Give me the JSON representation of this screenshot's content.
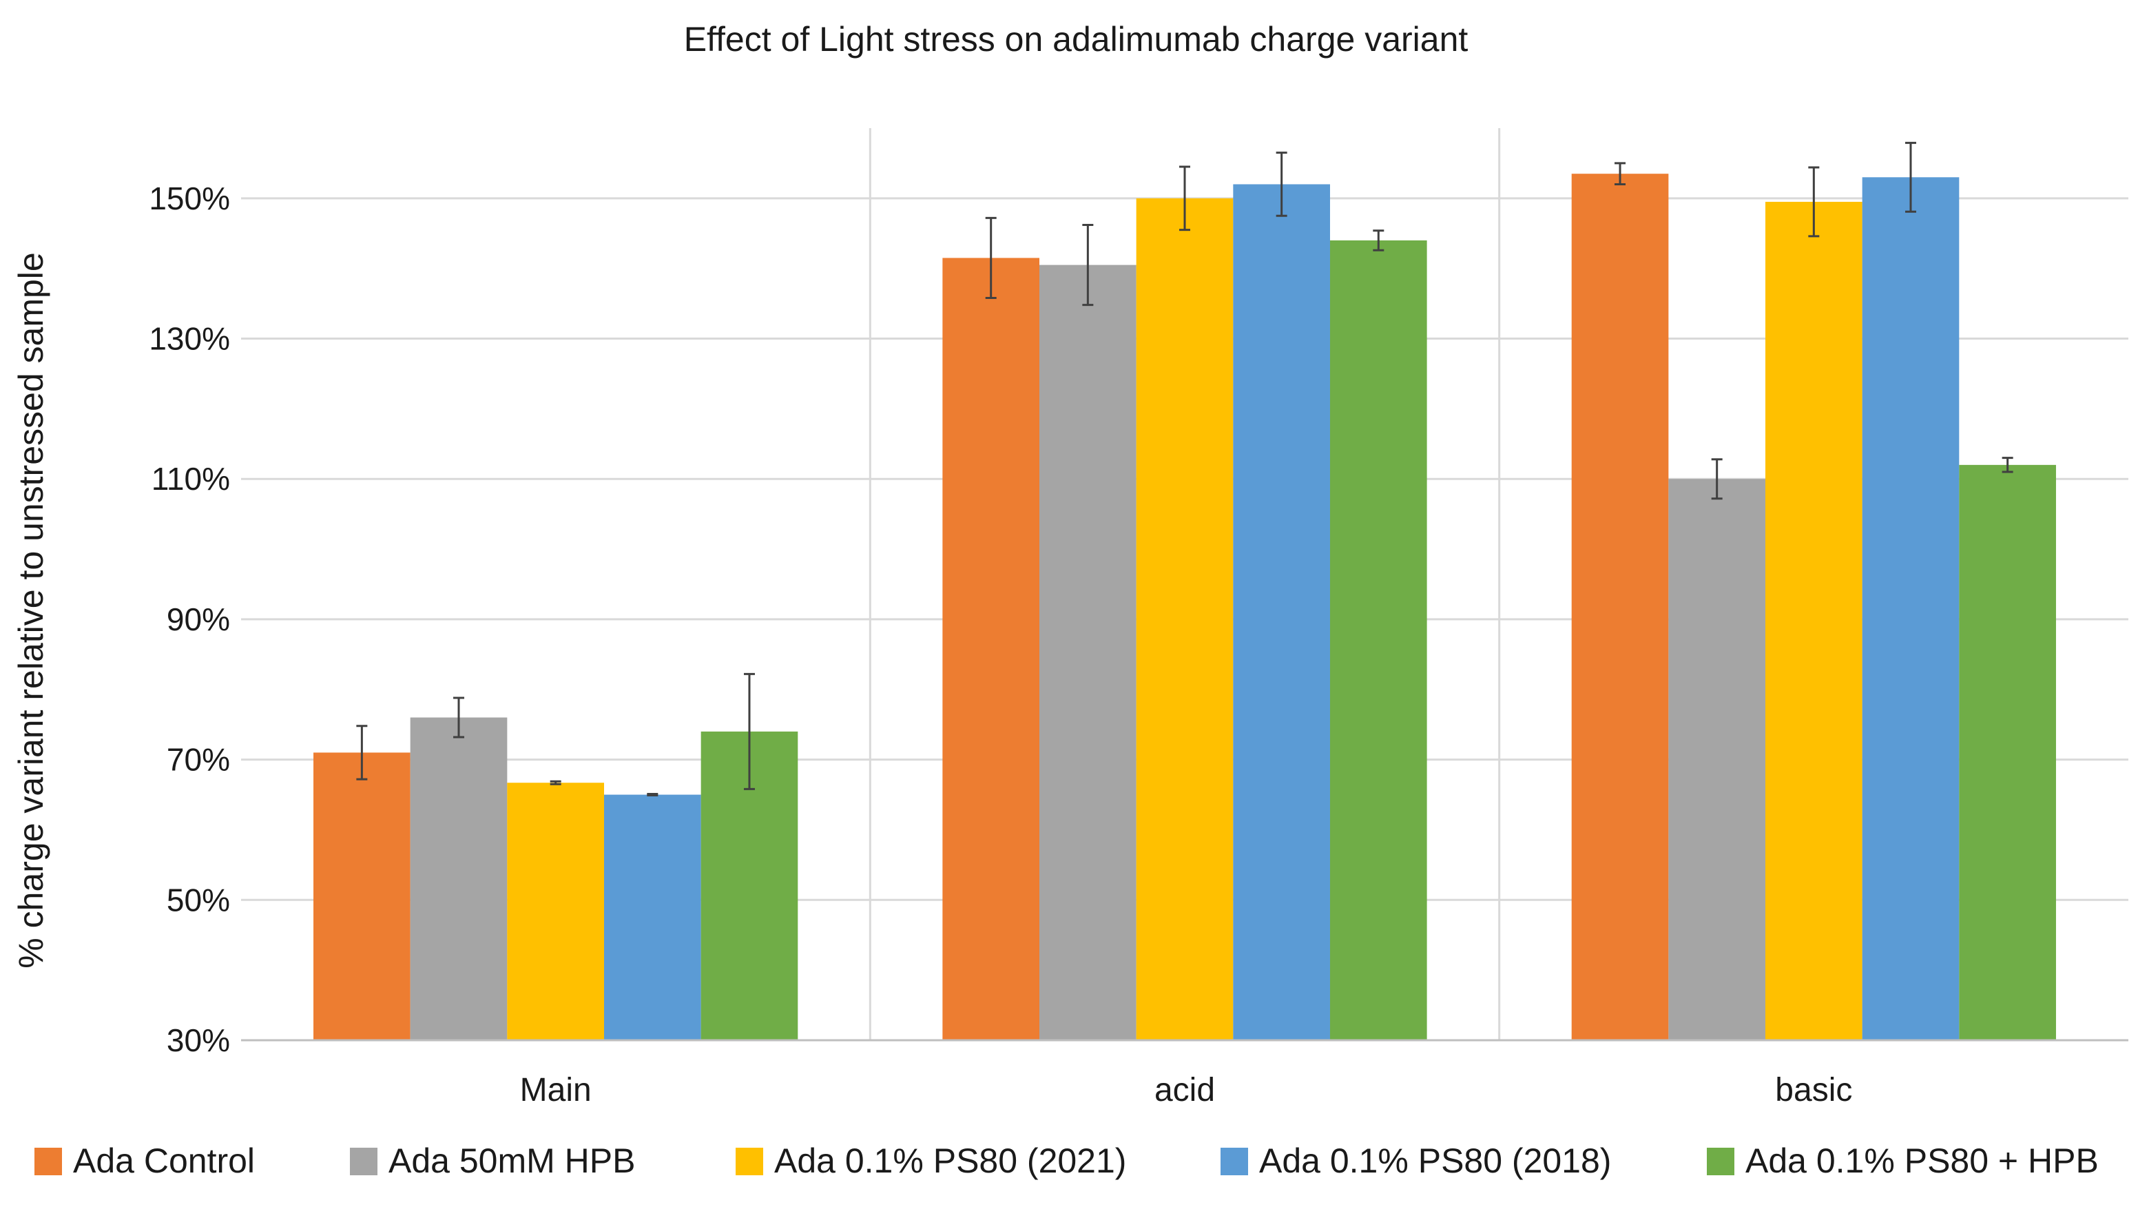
{
  "chart_data": {
    "type": "bar",
    "title": "Effect of Light stress on adalimumab charge variant",
    "xlabel": "",
    "ylabel": "% charge variant relative to unstressed sample",
    "ylim": [
      30,
      160
    ],
    "yticks": [
      30,
      50,
      70,
      90,
      110,
      130,
      150
    ],
    "ytick_labels": [
      "30%",
      "50%",
      "70%",
      "90%",
      "110%",
      "130%",
      "150%"
    ],
    "categories": [
      "Main",
      "acid",
      "basic"
    ],
    "grid": "horizontal and vertical category dividers",
    "legend_position": "bottom",
    "series": [
      {
        "name": "Ada Control",
        "color": "#ED7D31",
        "values": [
          71,
          141.5,
          153.5
        ],
        "errors": [
          3.8,
          5.7,
          1.5
        ]
      },
      {
        "name": "Ada 50mM HPB",
        "color": "#A5A5A5",
        "values": [
          76,
          140.5,
          110
        ],
        "errors": [
          2.8,
          5.7,
          2.8
        ]
      },
      {
        "name": "Ada 0.1% PS80 (2021)",
        "color": "#FFC000",
        "values": [
          66.7,
          150,
          149.5
        ],
        "errors": [
          0.2,
          4.5,
          4.9
        ]
      },
      {
        "name": "Ada 0.1% PS80 (2018)",
        "color": "#5B9BD5",
        "values": [
          65,
          152,
          153
        ],
        "errors": [
          0.1,
          4.5,
          4.9
        ]
      },
      {
        "name": "Ada 0.1% PS80 + HPB",
        "color": "#70AD47",
        "values": [
          74,
          144,
          112
        ],
        "errors": [
          8.2,
          1.4,
          1.0
        ]
      }
    ]
  }
}
